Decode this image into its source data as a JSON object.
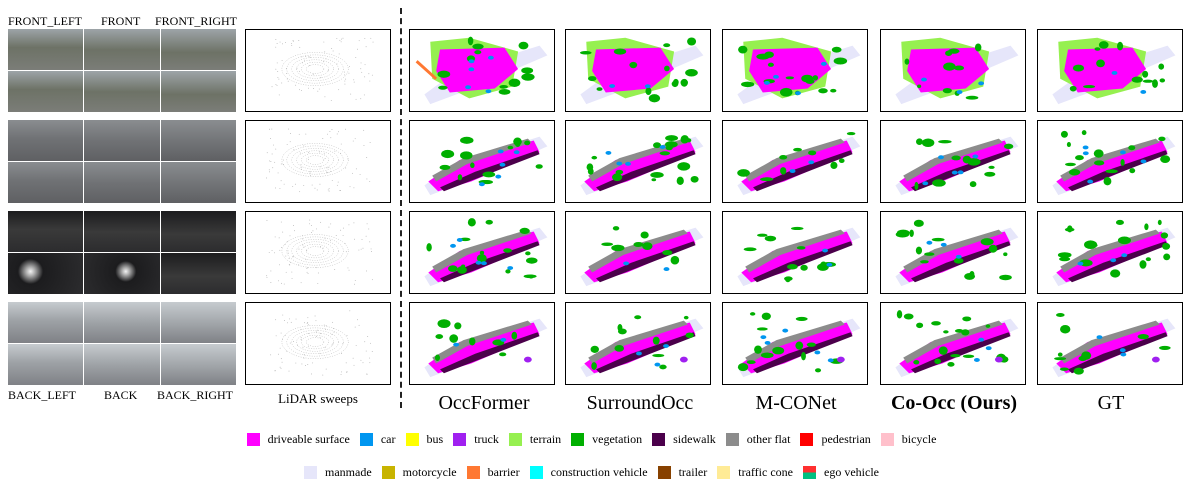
{
  "camera_labels": {
    "front_left": "FRONT_LEFT",
    "front": "FRONT",
    "front_right": "FRONT_RIGHT",
    "back_left": "BACK_LEFT",
    "back": "BACK",
    "back_right": "BACK_RIGHT"
  },
  "lidar_label": "LiDAR sweeps",
  "methods": [
    {
      "label": "OccFormer",
      "bold": false
    },
    {
      "label": "SurroundOcc",
      "bold": false
    },
    {
      "label": "M-CONet",
      "bold": false
    },
    {
      "label": "Co-Occ (Ours)",
      "bold": true
    },
    {
      "label": "GT",
      "bold": false
    }
  ],
  "scene_tones": [
    {
      "sky": "#9da4a8",
      "ground": "#7b7d78",
      "mid": "#6d7266"
    },
    {
      "sky": "#8a8d90",
      "ground": "#5f6063",
      "mid": "#707275"
    },
    {
      "sky": "#1c1c1e",
      "ground": "#2c2c2e",
      "mid": "#3a3a3a"
    },
    {
      "sky": "#c6cbcf",
      "ground": "#7f8186",
      "mid": "#9ea2a6"
    }
  ],
  "legend": [
    [
      {
        "label": "driveable surface",
        "color": "#ff00ff"
      },
      {
        "label": "car",
        "color": "#0096f0"
      },
      {
        "label": "bus",
        "color": "#ffff00"
      },
      {
        "label": "truck",
        "color": "#a020f0"
      },
      {
        "label": "terrain",
        "color": "#96f050"
      },
      {
        "label": "vegetation",
        "color": "#00af00"
      },
      {
        "label": "sidewalk",
        "color": "#4b004b"
      },
      {
        "label": "other flat",
        "color": "#8c8c8c"
      },
      {
        "label": "pedestrian",
        "color": "#ff0000"
      },
      {
        "label": "bicycle",
        "color": "#ffc0cb"
      }
    ],
    [
      {
        "label": "manmade",
        "color": "#e6e6fa"
      },
      {
        "label": "motorcycle",
        "color": "#c8b400"
      },
      {
        "label": "barrier",
        "color": "#ff7832"
      },
      {
        "label": "construction vehicle",
        "color": "#00ffff"
      },
      {
        "label": "trailer",
        "color": "#874100"
      },
      {
        "label": "traffic cone",
        "color": "#ffeb96"
      },
      {
        "label": "ego vehicle",
        "color": "split"
      }
    ]
  ]
}
